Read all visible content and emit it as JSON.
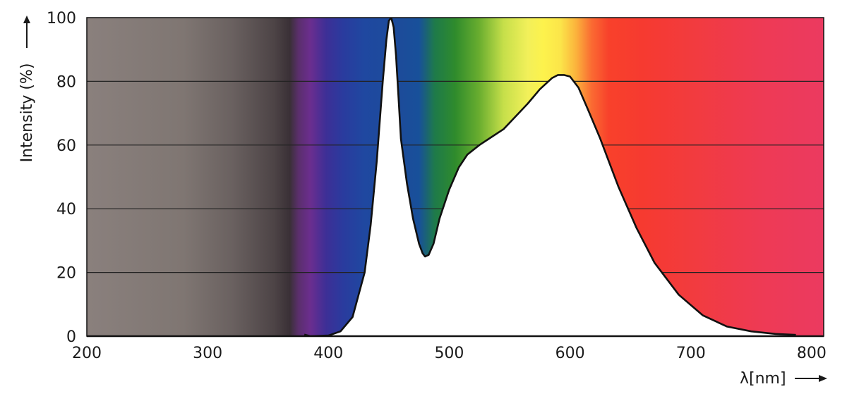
{
  "chart_data": {
    "type": "area",
    "title": "",
    "xlabel": "λ[nm]",
    "ylabel": "Intensity (%)",
    "xlim": [
      200,
      810
    ],
    "ylim": [
      0,
      100
    ],
    "x_ticks": [
      "200",
      "300",
      "400",
      "500",
      "600",
      "700",
      "800"
    ],
    "y_ticks": [
      "0",
      "20",
      "40",
      "60",
      "80",
      "100"
    ],
    "grid": "horizontal",
    "background": "visible spectrum color gradient (gray in UV, violet–blue–green–yellow–orange–red)",
    "series": [
      {
        "x": [
          380,
          385,
          400,
          410,
          420,
          430,
          435,
          440,
          445,
          448,
          450,
          452,
          454,
          456,
          458,
          460,
          465,
          470,
          475,
          478,
          480,
          483,
          487,
          492,
          500,
          508,
          515,
          525,
          535,
          545,
          555,
          565,
          575,
          585,
          590,
          595,
          600,
          607,
          615,
          625,
          640,
          655,
          670,
          690,
          710,
          730,
          750,
          770,
          787
        ],
        "values": [
          0.5,
          0,
          0.2,
          1.5,
          6,
          20,
          35,
          55,
          80,
          93,
          99,
          100,
          97,
          88,
          75,
          62,
          48,
          37,
          29,
          26,
          25,
          25.5,
          29,
          37,
          46,
          53,
          57,
          60,
          62.5,
          65,
          69,
          73,
          77.5,
          81,
          82,
          82,
          81.5,
          78,
          71,
          62,
          47,
          34,
          23,
          13,
          6.5,
          3,
          1.5,
          0.7,
          0.4
        ]
      }
    ]
  }
}
